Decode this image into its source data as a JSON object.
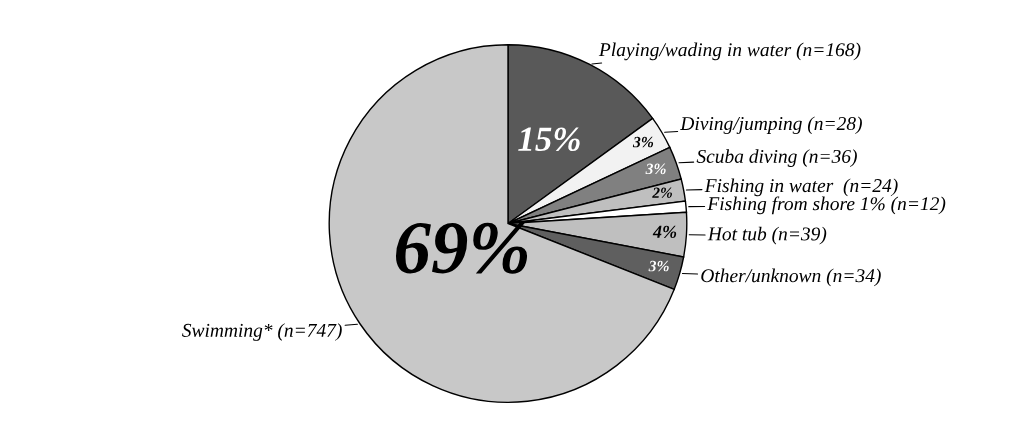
{
  "chart_data": {
    "type": "pie",
    "categories": [
      "Playing/wading in water (n=168)",
      "Diving/jumping (n=28)",
      "Scuba diving (n=36)",
      "Fishing in water  (n=24)",
      "Fishing from shore 1% (n=12)",
      "Hot tub (n=39)",
      "Other/unknown (n=34)",
      "Swimming* (n=747)"
    ],
    "values": [
      15,
      3,
      3,
      2,
      1,
      4,
      3,
      69
    ],
    "colors": [
      "#595959",
      "#f2f2f2",
      "#808080",
      "#bfbfbf",
      "#ffffff",
      "#bfbfbf",
      "#5f5f5f",
      "#c8c8c8"
    ],
    "value_labels": [
      "15%",
      "3%",
      "3%",
      "2%",
      null,
      "4%",
      "3%",
      "69%"
    ],
    "legend": false
  }
}
